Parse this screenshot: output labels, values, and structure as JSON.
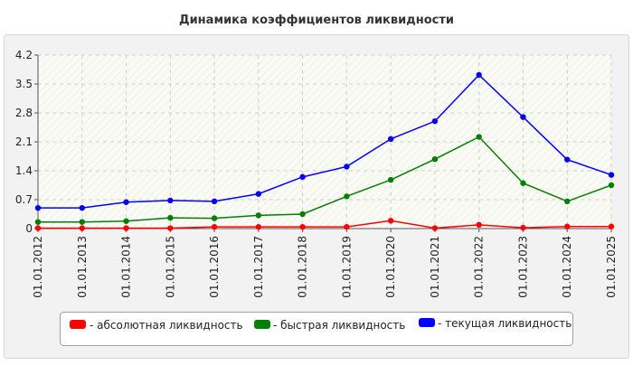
{
  "chart_data": {
    "type": "line",
    "title": "Динамика коэффициентов ликвидности",
    "xlabel": "",
    "ylabel": "",
    "categories": [
      "01.01.2012",
      "01.01.2013",
      "01.01.2014",
      "01.01.2015",
      "01.01.2016",
      "01.01.2017",
      "01.01.2018",
      "01.01.2019",
      "01.01.2020",
      "01.01.2021",
      "01.01.2022",
      "01.01.2023",
      "01.01.2024",
      "01.01.2025"
    ],
    "y_ticks": [
      "0",
      "0.7",
      "1.4",
      "2.1",
      "2.8",
      "3.5",
      "4.2"
    ],
    "ylim": [
      0,
      4.2
    ],
    "grid": true,
    "legend_position": "bottom",
    "series": [
      {
        "name": "- абсолютная ликвидность",
        "color": "#ff0000",
        "values": [
          0.01,
          0.01,
          0.01,
          0.01,
          0.04,
          0.04,
          0.04,
          0.04,
          0.19,
          0.01,
          0.09,
          0.02,
          0.05,
          0.05
        ]
      },
      {
        "name": "- быстрая ликвидность",
        "color": "#008000",
        "values": [
          0.16,
          0.16,
          0.18,
          0.26,
          0.25,
          0.32,
          0.35,
          0.78,
          1.18,
          1.68,
          2.22,
          1.1,
          0.66,
          1.05
        ]
      },
      {
        "name": "- текущая ликвидность",
        "color": "#0000ff",
        "values": [
          0.5,
          0.5,
          0.64,
          0.68,
          0.66,
          0.84,
          1.25,
          1.5,
          2.17,
          2.6,
          3.72,
          2.7,
          1.67,
          1.3
        ]
      }
    ]
  }
}
